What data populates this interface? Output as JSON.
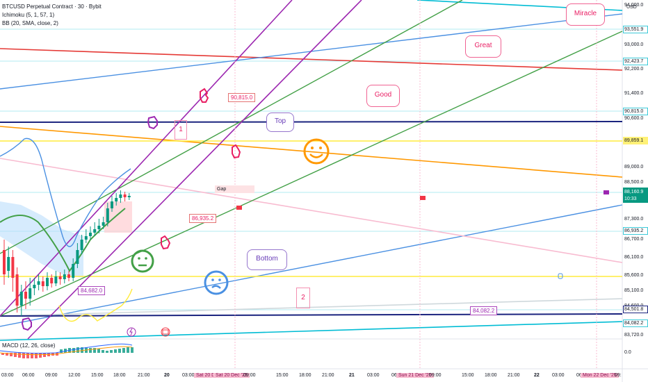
{
  "legend": {
    "symbol": "BTCUSD Perpetual Contract · 30 · Bybit",
    "ichimoku": "Ichimoku (5, 1, 57, 1)",
    "bb": "BB (20, SMA, close, 2)",
    "macd": "MACD (12, 26, close)"
  },
  "price_axis": {
    "currency": "USD",
    "ticks": [
      "94,000.0",
      "93,000.0",
      "92,200.0",
      "91,400.0",
      "90,600.0",
      "89,000.0",
      "88,500.0",
      "87,300.0",
      "86,700.0",
      "86,100.0",
      "85,600.0",
      "85,100.0",
      "84,600.0",
      "83,720.0",
      "0.0"
    ],
    "badges": {
      "b1": "93,551.9",
      "b2": "92,423.7",
      "b3": "90,815.0",
      "b4": "89,859.1",
      "b5": "86,935.2",
      "b6": "84,501.8",
      "b7": "84,082.2"
    },
    "current_price": "88,160.9",
    "countdown": "10:33"
  },
  "time_axis": {
    "labels": [
      "03:00",
      "06:00",
      "09:00",
      "12:00",
      "15:00",
      "18:00",
      "21:00",
      "20",
      "03:00",
      "Sat 20 D",
      "Sat 20 Dec '25",
      "09:00",
      "15:00",
      "18:00",
      "21:00",
      "21",
      "03:00",
      "06",
      "Sun 21 Dec '25",
      "09:00",
      "15:00",
      "18:00",
      "21:00",
      "22",
      "03:00",
      "06",
      "Mon 22 Dec '25",
      "09:"
    ]
  },
  "annotations": {
    "callout_90815": "90,815.0",
    "callout_86935": "86,935.2",
    "callout_84682": "84,682.0",
    "callout_84082": "84,082.2",
    "bubble_top": "Top",
    "bubble_bottom": "Bottom",
    "bubble_good": "Good",
    "bubble_great": "Great",
    "bubble_miracle": "Miracle",
    "gap": "Gap",
    "num_1": "1",
    "num_2": "2"
  },
  "colors": {
    "up_candle": "#089981",
    "down_candle": "#f23645",
    "cyan_line": "#00bcd4",
    "navy_line": "#1a237e",
    "orange_line": "#ff9800",
    "yellow_line": "#ffeb3b",
    "red_line": "#e53935",
    "purple_line": "#9c27b0",
    "green_line": "#43a047",
    "blue_line": "#4a90e2",
    "pink_line": "#f8bbd0"
  },
  "icons": [
    "hand-point-icon",
    "smiley-happy-icon",
    "smiley-neutral-icon",
    "smiley-confused-icon",
    "flag-icon",
    "lightning-icon",
    "calendar-icon"
  ]
}
